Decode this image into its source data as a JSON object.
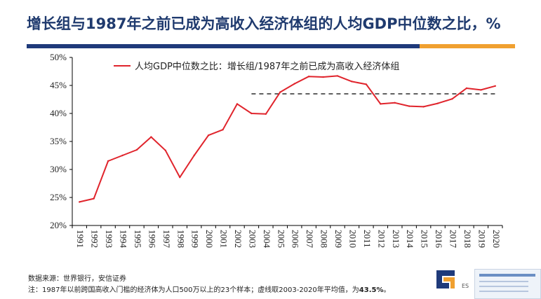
{
  "slide": {
    "title": "增长组与1987年之前已成为高收入经济体组的人均GDP中位数之比，%",
    "source": "数据来源：世界银行，安信证券",
    "note_prefix": "注：1987年以前跨国高收入门槛的经济体为人口500万以上的23个样本；虚线取2003-2020年平均值，为",
    "note_value": "43.5%",
    "note_suffix": "。",
    "logo_text": "ES"
  },
  "colors": {
    "title": "#1f3a6e",
    "series": "#e0242c",
    "rule_navy": "#1f3a7a",
    "rule_orange": "#f0a030",
    "logo": "#1f3a7a"
  },
  "chart_data": {
    "type": "line",
    "title": "",
    "xlabel": "",
    "ylabel": "",
    "x": [
      "1991",
      "1992",
      "1993",
      "1994",
      "1995",
      "1996",
      "1997",
      "1998",
      "1999",
      "2000",
      "2001",
      "2002",
      "2003",
      "2004",
      "2005",
      "2006",
      "2007",
      "2008",
      "2009",
      "2010",
      "2011",
      "2012",
      "2013",
      "2014",
      "2015",
      "2016",
      "2017",
      "2018",
      "2019",
      "2020"
    ],
    "series": [
      {
        "name": "人均GDP中位数之比：增长组/1987年之前已成为高收入经济体组",
        "values": [
          24.2,
          24.8,
          31.5,
          32.5,
          33.5,
          35.8,
          33.4,
          28.6,
          32.5,
          36.1,
          37.1,
          41.7,
          40.0,
          39.9,
          43.8,
          45.3,
          46.6,
          46.5,
          46.7,
          45.7,
          45.2,
          41.7,
          41.9,
          41.3,
          41.2,
          41.8,
          42.6,
          44.5,
          44.2,
          44.9
        ]
      }
    ],
    "reference_line": {
      "value": 43.5,
      "from": "2003",
      "to": "2020",
      "style": "dashed"
    },
    "ylim": [
      20,
      50
    ],
    "yticks": [
      "20%",
      "25%",
      "30%",
      "35%",
      "40%",
      "45%",
      "50%"
    ],
    "grid": false,
    "legend": "top"
  }
}
